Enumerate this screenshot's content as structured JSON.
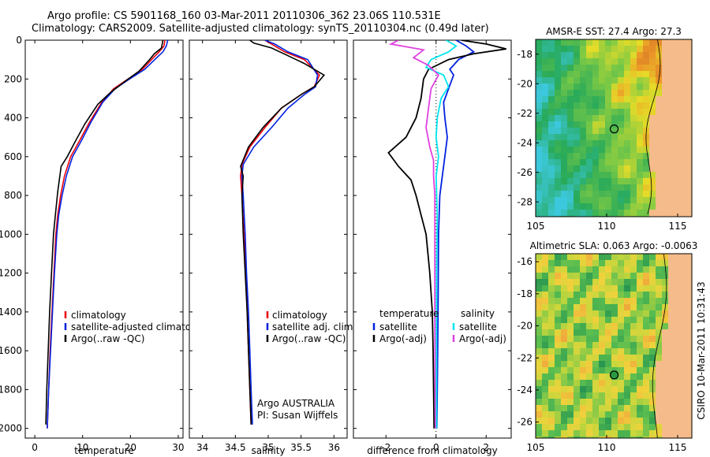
{
  "figure": {
    "title_line1": "Argo profile: CS 5901168_160 03-Mar-2011 20110306_362 23.06S 110.531E",
    "title_line2": "Climatology: CARS2009. Satellite-adjusted climatology: synTS_20110304.nc (0.49d later)",
    "side_label": "CSIRO 10-Mar-2011 10:31:43"
  },
  "colors": {
    "climatology": "#e8000b",
    "satellite": "#0022e0",
    "argo": "#000000",
    "salinity_satellite": "#00e5ee",
    "salinity_argo": "#e040e0",
    "land": "#f5bb8a"
  },
  "chart_data": [
    {
      "id": "temperature",
      "type": "line",
      "xlabel": "temperature",
      "ylabel": "",
      "xlim": [
        -2,
        31
      ],
      "ylim": [
        2050,
        0
      ],
      "xticks": [
        0,
        10,
        20,
        30
      ],
      "yticks": [
        0,
        200,
        400,
        600,
        800,
        1000,
        1200,
        1400,
        1600,
        1800,
        2000
      ],
      "legend": [
        "climatology",
        "satellite-adjusted climatology",
        "Argo(..raw -QC)"
      ],
      "series": [
        {
          "name": "climatology",
          "color": "climatology",
          "points": [
            [
              27.2,
              0
            ],
            [
              27.0,
              30
            ],
            [
              26.0,
              60
            ],
            [
              24.8,
              90
            ],
            [
              22.5,
              150
            ],
            [
              19.5,
              200
            ],
            [
              16.5,
              250
            ],
            [
              14.0,
              320
            ],
            [
              11.5,
              420
            ],
            [
              9.3,
              520
            ],
            [
              7.5,
              600
            ],
            [
              6.2,
              700
            ],
            [
              5.4,
              800
            ],
            [
              4.8,
              900
            ],
            [
              4.4,
              1000
            ],
            [
              4.0,
              1200
            ],
            [
              3.6,
              1400
            ],
            [
              3.2,
              1600
            ],
            [
              2.9,
              1800
            ],
            [
              2.6,
              2000
            ]
          ]
        },
        {
          "name": "satellite",
          "color": "satellite",
          "points": [
            [
              27.8,
              0
            ],
            [
              27.5,
              30
            ],
            [
              26.8,
              60
            ],
            [
              25.5,
              90
            ],
            [
              23.0,
              150
            ],
            [
              19.8,
              200
            ],
            [
              16.8,
              250
            ],
            [
              14.2,
              320
            ],
            [
              11.8,
              420
            ],
            [
              9.7,
              520
            ],
            [
              7.9,
              600
            ],
            [
              6.6,
              700
            ],
            [
              5.7,
              800
            ],
            [
              5.0,
              900
            ],
            [
              4.6,
              1000
            ],
            [
              4.1,
              1200
            ],
            [
              3.7,
              1400
            ],
            [
              3.3,
              1600
            ],
            [
              2.9,
              1800
            ],
            [
              2.6,
              2000
            ]
          ]
        },
        {
          "name": "Argo(..raw -QC)",
          "color": "argo",
          "points": [
            [
              26.8,
              0
            ],
            [
              26.5,
              40
            ],
            [
              25.0,
              70
            ],
            [
              24.0,
              100
            ],
            [
              21.8,
              160
            ],
            [
              19.0,
              210
            ],
            [
              15.8,
              270
            ],
            [
              13.2,
              330
            ],
            [
              10.5,
              430
            ],
            [
              8.5,
              520
            ],
            [
              6.8,
              600
            ],
            [
              5.5,
              650
            ],
            [
              4.8,
              780
            ],
            [
              4.3,
              900
            ],
            [
              3.9,
              1000
            ],
            [
              3.5,
              1200
            ],
            [
              3.1,
              1400
            ],
            [
              2.8,
              1600
            ],
            [
              2.5,
              1800
            ],
            [
              2.3,
              1980
            ]
          ]
        }
      ]
    },
    {
      "id": "salinity",
      "type": "line",
      "xlabel": "salinity",
      "xlim": [
        33.8,
        36.2
      ],
      "ylim": [
        2050,
        0
      ],
      "xticks": [
        34,
        34.5,
        35,
        35.5,
        36
      ],
      "legend": [
        "climatology",
        "satellite adj. clim.",
        "Argo(..raw -QC)"
      ],
      "annotation_line1": "Argo AUSTRALIA",
      "annotation_line2": "PI: Susan Wijffels",
      "series": [
        {
          "name": "climatology",
          "color": "climatology",
          "points": [
            [
              34.95,
              0
            ],
            [
              35.05,
              20
            ],
            [
              35.25,
              60
            ],
            [
              35.55,
              100
            ],
            [
              35.78,
              180
            ],
            [
              35.7,
              240
            ],
            [
              35.5,
              280
            ],
            [
              35.2,
              350
            ],
            [
              34.95,
              450
            ],
            [
              34.72,
              550
            ],
            [
              34.6,
              640
            ],
            [
              34.58,
              700
            ],
            [
              34.6,
              800
            ],
            [
              34.63,
              1000
            ],
            [
              34.66,
              1200
            ],
            [
              34.68,
              1400
            ],
            [
              34.7,
              1600
            ],
            [
              34.72,
              1800
            ],
            [
              34.74,
              1980
            ]
          ]
        },
        {
          "name": "satellite",
          "color": "satellite",
          "points": [
            [
              34.95,
              0
            ],
            [
              35.1,
              20
            ],
            [
              35.3,
              60
            ],
            [
              35.6,
              100
            ],
            [
              35.75,
              180
            ],
            [
              35.72,
              240
            ],
            [
              35.55,
              280
            ],
            [
              35.3,
              350
            ],
            [
              35.05,
              450
            ],
            [
              34.78,
              550
            ],
            [
              34.62,
              640
            ],
            [
              34.6,
              700
            ],
            [
              34.62,
              800
            ],
            [
              34.65,
              1000
            ],
            [
              34.67,
              1200
            ],
            [
              34.7,
              1400
            ],
            [
              34.72,
              1600
            ],
            [
              34.74,
              1800
            ],
            [
              34.76,
              1980
            ]
          ]
        },
        {
          "name": "Argo(..raw -QC)",
          "color": "argo",
          "points": [
            [
              34.72,
              0
            ],
            [
              34.78,
              15
            ],
            [
              35.05,
              40
            ],
            [
              35.3,
              80
            ],
            [
              35.55,
              120
            ],
            [
              35.85,
              180
            ],
            [
              35.7,
              240
            ],
            [
              35.5,
              280
            ],
            [
              35.2,
              350
            ],
            [
              34.92,
              450
            ],
            [
              34.7,
              550
            ],
            [
              34.58,
              650
            ],
            [
              34.62,
              700
            ],
            [
              34.6,
              800
            ],
            [
              34.62,
              1000
            ],
            [
              34.65,
              1200
            ],
            [
              34.68,
              1400
            ],
            [
              34.7,
              1600
            ],
            [
              34.72,
              1800
            ],
            [
              34.74,
              1980
            ]
          ]
        }
      ]
    },
    {
      "id": "difference",
      "type": "line",
      "xlabel": "difference from climatology",
      "xlim": [
        -3.3,
        3.0
      ],
      "ylim": [
        2050,
        0
      ],
      "xticks": [
        -2,
        0,
        2
      ],
      "legend_left_title": "temperature",
      "legend_right_title": "salinity",
      "legend_left": [
        "satellite",
        "Argo(-adj)"
      ],
      "legend_right": [
        "satellite",
        "Argo(-adj)"
      ],
      "series": [
        {
          "name": "temperature satellite",
          "color": "satellite",
          "points": [
            [
              0.8,
              0
            ],
            [
              1.2,
              30
            ],
            [
              1.5,
              60
            ],
            [
              0.9,
              100
            ],
            [
              0.55,
              150
            ],
            [
              0.7,
              180
            ],
            [
              0.5,
              250
            ],
            [
              0.3,
              320
            ],
            [
              0.35,
              400
            ],
            [
              0.45,
              500
            ],
            [
              0.35,
              600
            ],
            [
              0.25,
              700
            ],
            [
              0.15,
              800
            ],
            [
              0.1,
              1000
            ],
            [
              0.08,
              1400
            ],
            [
              0.05,
              1800
            ],
            [
              0.03,
              2000
            ]
          ]
        },
        {
          "name": "temperature Argo(-adj)",
          "color": "argo",
          "points": [
            [
              1.0,
              0
            ],
            [
              2.0,
              20
            ],
            [
              2.8,
              45
            ],
            [
              1.5,
              70
            ],
            [
              0.5,
              100
            ],
            [
              -0.3,
              150
            ],
            [
              -0.5,
              200
            ],
            [
              -0.6,
              300
            ],
            [
              -0.8,
              400
            ],
            [
              -1.2,
              500
            ],
            [
              -1.9,
              580
            ],
            [
              -1.5,
              650
            ],
            [
              -1.0,
              720
            ],
            [
              -0.8,
              800
            ],
            [
              -0.6,
              900
            ],
            [
              -0.4,
              1000
            ],
            [
              -0.25,
              1200
            ],
            [
              -0.15,
              1400
            ],
            [
              -0.12,
              1600
            ],
            [
              -0.1,
              1800
            ],
            [
              -0.08,
              2000
            ]
          ]
        },
        {
          "name": "salinity satellite",
          "color": "salinity_satellite",
          "points": [
            [
              0.4,
              0
            ],
            [
              0.8,
              30
            ],
            [
              0.5,
              60
            ],
            [
              -0.2,
              100
            ],
            [
              -0.4,
              140
            ],
            [
              0.3,
              180
            ],
            [
              0.5,
              240
            ],
            [
              0.2,
              300
            ],
            [
              0.05,
              400
            ],
            [
              0.0,
              500
            ],
            [
              0.1,
              600
            ],
            [
              0.0,
              700
            ],
            [
              0.05,
              900
            ],
            [
              0.02,
              1200
            ],
            [
              0.02,
              1600
            ],
            [
              0.02,
              2000
            ]
          ]
        },
        {
          "name": "salinity Argo(-adj)",
          "color": "salinity_argo",
          "points": [
            [
              -1.5,
              0
            ],
            [
              -1.8,
              20
            ],
            [
              -0.5,
              50
            ],
            [
              -0.9,
              90
            ],
            [
              -0.3,
              130
            ],
            [
              0.1,
              180
            ],
            [
              -0.2,
              250
            ],
            [
              -0.3,
              350
            ],
            [
              -0.4,
              450
            ],
            [
              -0.25,
              550
            ],
            [
              -0.1,
              620
            ],
            [
              -0.1,
              700
            ],
            [
              -0.05,
              800
            ],
            [
              -0.05,
              1000
            ],
            [
              -0.05,
              1400
            ],
            [
              -0.04,
              1800
            ],
            [
              -0.03,
              2000
            ]
          ]
        }
      ]
    },
    {
      "id": "sst_map",
      "type": "heatmap",
      "title": "AMSR-E SST: 27.4 Argo: 27.3",
      "xlim": [
        105,
        116
      ],
      "ylim": [
        -29,
        -17
      ],
      "xticks": [
        105,
        110,
        115
      ],
      "yticks": [
        -18,
        -20,
        -22,
        -24,
        -26,
        -28
      ],
      "argo_position": [
        110.531,
        -23.06
      ]
    },
    {
      "id": "sla_map",
      "type": "heatmap",
      "title": "Altimetric SLA: 0.063 Argo: -0.0063",
      "xlim": [
        105,
        116
      ],
      "ylim": [
        -27,
        -15.5
      ],
      "xticks": [
        105,
        110,
        115
      ],
      "yticks": [
        -16,
        -18,
        -20,
        -22,
        -24,
        -26
      ],
      "argo_position": [
        110.531,
        -23.06
      ]
    }
  ]
}
